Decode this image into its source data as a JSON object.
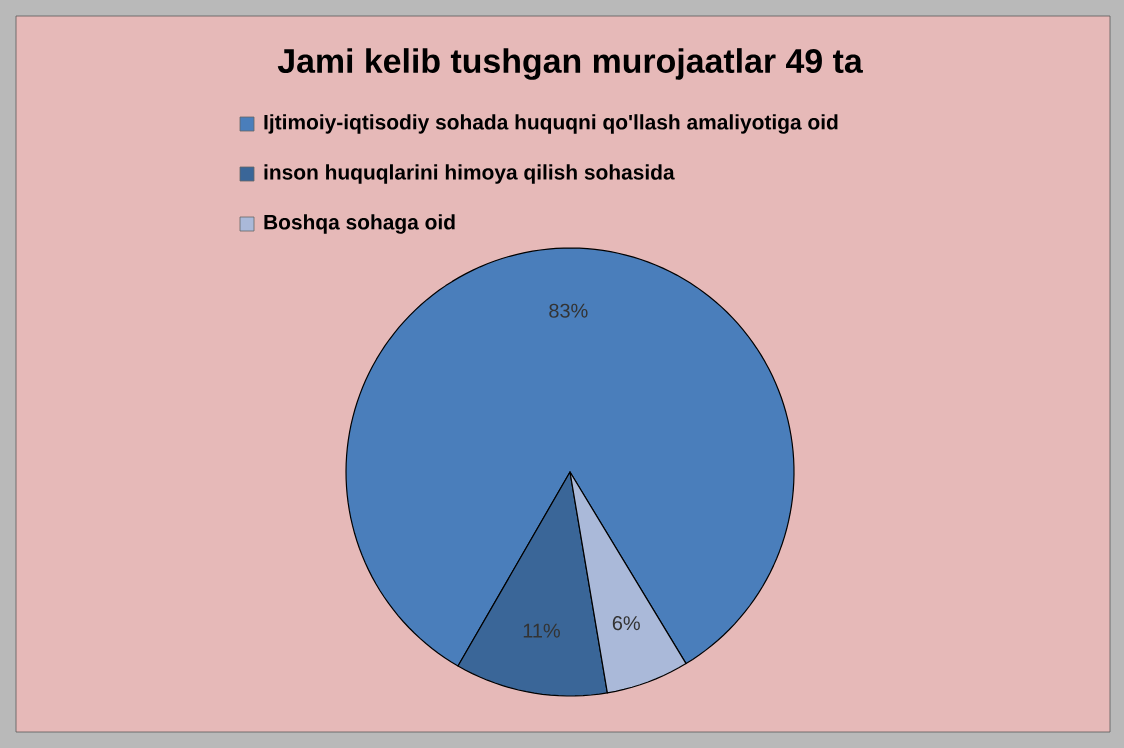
{
  "chart_data": {
    "type": "pie",
    "title": "Jami kelib tushgan murojaatlar  49 ta",
    "categories": [
      "Ijtimoiy-iqtisodiy sohada huquqni qo'llash amaliyotiga oid",
      "inson huquqlarini himoya qilish sohasida",
      "Boshqa sohaga oid"
    ],
    "values": [
      83,
      11,
      6
    ],
    "colors": [
      "#4a7ebb",
      "#3a6698",
      "#aab9d9"
    ],
    "value_labels": [
      "83%",
      "11%",
      "6%"
    ],
    "legend": "top"
  }
}
